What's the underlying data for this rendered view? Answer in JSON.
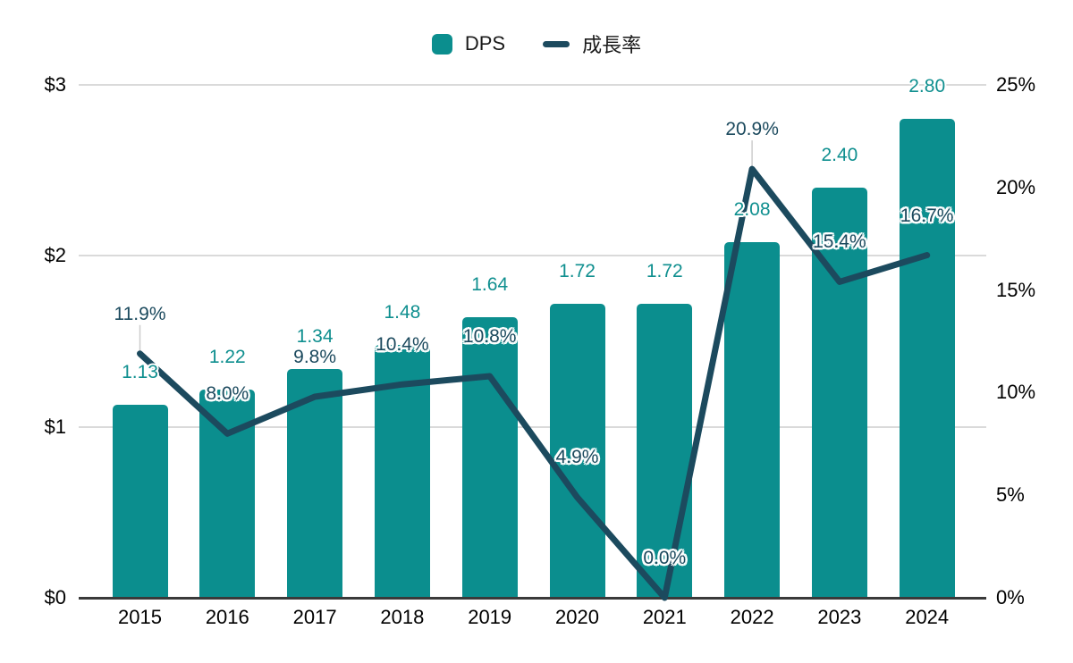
{
  "legend": {
    "items": [
      {
        "label": "DPS",
        "swatch": "square",
        "color": "#0B8E8E"
      },
      {
        "label": "成長率",
        "swatch": "line",
        "color": "#1C4A5E"
      }
    ]
  },
  "chart_data": {
    "type": "bar",
    "combo": "bar+line",
    "title": "",
    "categories": [
      "2015",
      "2016",
      "2017",
      "2018",
      "2019",
      "2020",
      "2021",
      "2022",
      "2023",
      "2024"
    ],
    "series": [
      {
        "name": "DPS",
        "type": "bar",
        "axis": "left",
        "color": "#0B8E8E",
        "values": [
          1.13,
          1.22,
          1.34,
          1.48,
          1.64,
          1.72,
          1.72,
          2.08,
          2.4,
          2.8
        ],
        "labels": [
          "1.13",
          "1.22",
          "1.34",
          "1.48",
          "1.64",
          "1.72",
          "1.72",
          "2.08",
          "2.40",
          "2.80"
        ]
      },
      {
        "name": "成長率",
        "type": "line",
        "axis": "right",
        "color": "#1C4A5E",
        "values": [
          11.9,
          8.0,
          9.8,
          10.4,
          10.8,
          4.9,
          0.0,
          20.9,
          15.4,
          16.7
        ],
        "labels": [
          "11.9%",
          "8.0%",
          "9.8%",
          "10.4%",
          "10.8%",
          "4.9%",
          "0.0%",
          "20.9%",
          "15.4%",
          "16.7%"
        ]
      }
    ],
    "left_axis": {
      "min": 0,
      "max": 3,
      "ticks": [
        {
          "value": 0,
          "label": "$0"
        },
        {
          "value": 1,
          "label": "$1"
        },
        {
          "value": 2,
          "label": "$2"
        },
        {
          "value": 3,
          "label": "$3"
        }
      ]
    },
    "right_axis": {
      "min": 0,
      "max": 25,
      "ticks": [
        {
          "value": 0,
          "label": "0%"
        },
        {
          "value": 5,
          "label": "5%"
        },
        {
          "value": 10,
          "label": "10%"
        },
        {
          "value": 15,
          "label": "15%"
        },
        {
          "value": 20,
          "label": "20%"
        },
        {
          "value": 25,
          "label": "25%"
        }
      ]
    },
    "grid": "horizontal",
    "legend_position": "top",
    "label_leader_lines_at": [
      "2015",
      "2022"
    ],
    "colors": {
      "bar": "#0B8E8E",
      "line": "#1C4A5E",
      "dps_label": "#0F8F8F",
      "growth_label": "#1C4A5E",
      "grid": "#DADADA",
      "axis_line": "#3A3A3A",
      "tick_text": "#000000",
      "leader": "#CCCCCC"
    }
  }
}
